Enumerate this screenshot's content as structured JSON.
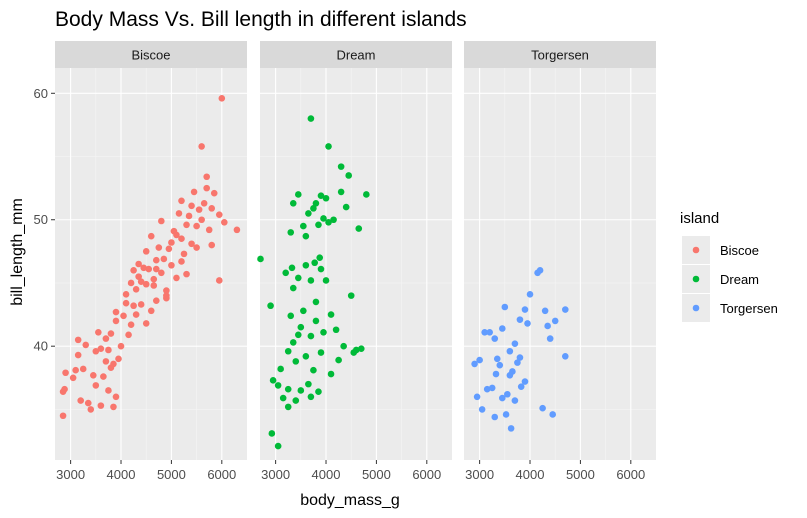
{
  "chart_data": {
    "type": "scatter",
    "title": "Body Mass Vs.  Bill length in different islands",
    "xlabel": "body_mass_g",
    "ylabel": "bill_length_mm",
    "xlim": [
      2690,
      6500
    ],
    "ylim": [
      31,
      62
    ],
    "x_ticks": [
      3000,
      4000,
      5000,
      6000
    ],
    "x_tick_labels": [
      "3000",
      "4000",
      "5000",
      "6000"
    ],
    "y_ticks": [
      40,
      50,
      60
    ],
    "y_tick_labels": [
      "40",
      "50",
      "60"
    ],
    "grid": true,
    "legend": {
      "title": "island",
      "position": "right"
    },
    "facets": [
      {
        "name": "Biscoe",
        "color": "#F8766D",
        "points": [
          [
            2850,
            34.5
          ],
          [
            2850,
            36.4
          ],
          [
            2880,
            36.6
          ],
          [
            2900,
            37.9
          ],
          [
            3050,
            37.5
          ],
          [
            3100,
            38.1
          ],
          [
            3150,
            40.5
          ],
          [
            3150,
            39.3
          ],
          [
            3200,
            35.7
          ],
          [
            3250,
            38.2
          ],
          [
            3300,
            40.1
          ],
          [
            3350,
            35.5
          ],
          [
            3400,
            35.0
          ],
          [
            3450,
            37.7
          ],
          [
            3500,
            36.9
          ],
          [
            3500,
            39.6
          ],
          [
            3550,
            41.1
          ],
          [
            3600,
            35.3
          ],
          [
            3600,
            39.8
          ],
          [
            3650,
            37.6
          ],
          [
            3700,
            38.8
          ],
          [
            3700,
            40.6
          ],
          [
            3750,
            39.7
          ],
          [
            3750,
            36.5
          ],
          [
            3800,
            38.3
          ],
          [
            3800,
            41.0
          ],
          [
            3850,
            38.6
          ],
          [
            3900,
            42.7
          ],
          [
            3900,
            42.0
          ],
          [
            3950,
            39.0
          ],
          [
            4000,
            40.0
          ],
          [
            4050,
            42.4
          ],
          [
            4100,
            44.1
          ],
          [
            4150,
            40.9
          ],
          [
            4200,
            41.7
          ],
          [
            4250,
            43.2
          ],
          [
            4300,
            44.5
          ],
          [
            4300,
            42.5
          ],
          [
            4350,
            45.5
          ],
          [
            4350,
            46.5
          ],
          [
            4400,
            43.3
          ],
          [
            4400,
            45.1
          ],
          [
            4450,
            46.2
          ],
          [
            4500,
            47.5
          ],
          [
            4500,
            44.9
          ],
          [
            4550,
            46.1
          ],
          [
            4600,
            42.8
          ],
          [
            4600,
            48.7
          ],
          [
            4650,
            45.3
          ],
          [
            4700,
            46.8
          ],
          [
            4700,
            43.6
          ],
          [
            4750,
            47.8
          ],
          [
            4800,
            45.8
          ],
          [
            4800,
            49.9
          ],
          [
            4850,
            46.9
          ],
          [
            4900,
            44.4
          ],
          [
            4950,
            47.7
          ],
          [
            5000,
            48.2
          ],
          [
            5000,
            46.4
          ],
          [
            5050,
            49.1
          ],
          [
            5100,
            45.4
          ],
          [
            5150,
            50.5
          ],
          [
            5200,
            48.5
          ],
          [
            5200,
            46.7
          ],
          [
            5250,
            47.3
          ],
          [
            5300,
            49.6
          ],
          [
            5350,
            50.3
          ],
          [
            5400,
            51.1
          ],
          [
            5400,
            48.1
          ],
          [
            5450,
            52.2
          ],
          [
            5500,
            49.5
          ],
          [
            5550,
            50.8
          ],
          [
            5600,
            50.0
          ],
          [
            5600,
            55.8
          ],
          [
            5650,
            51.3
          ],
          [
            5700,
            52.5
          ],
          [
            5750,
            49.2
          ],
          [
            5800,
            48.0
          ],
          [
            5850,
            52.1
          ],
          [
            5950,
            50.4
          ],
          [
            6000,
            59.6
          ],
          [
            6050,
            49.8
          ],
          [
            6300,
            49.2
          ],
          [
            5950,
            45.2
          ],
          [
            5700,
            53.4
          ],
          [
            5500,
            47.8
          ],
          [
            5300,
            45.7
          ],
          [
            5100,
            48.8
          ],
          [
            4900,
            43.8
          ],
          [
            4700,
            46.1
          ],
          [
            3900,
            36.0
          ],
          [
            3850,
            35.2
          ],
          [
            4500,
            41.8
          ],
          [
            4200,
            45.0
          ],
          [
            4900,
            44.0
          ],
          [
            5200,
            51.5
          ],
          [
            5800,
            50.9
          ],
          [
            4650,
            44.8
          ],
          [
            4250,
            46.0
          ],
          [
            4100,
            43.4
          ]
        ]
      },
      {
        "name": "Dream",
        "color": "#00BA38",
        "points": [
          [
            2700,
            46.9
          ],
          [
            2900,
            43.2
          ],
          [
            2925,
            33.1
          ],
          [
            2950,
            37.3
          ],
          [
            3050,
            32.1
          ],
          [
            3050,
            36.9
          ],
          [
            3100,
            38.2
          ],
          [
            3150,
            35.9
          ],
          [
            3200,
            45.8
          ],
          [
            3250,
            39.6
          ],
          [
            3250,
            36.6
          ],
          [
            3300,
            42.4
          ],
          [
            3300,
            49.0
          ],
          [
            3325,
            46.2
          ],
          [
            3350,
            51.3
          ],
          [
            3350,
            40.3
          ],
          [
            3400,
            38.8
          ],
          [
            3400,
            35.7
          ],
          [
            3450,
            45.4
          ],
          [
            3450,
            52.0
          ],
          [
            3500,
            41.5
          ],
          [
            3500,
            36.5
          ],
          [
            3550,
            49.5
          ],
          [
            3550,
            42.8
          ],
          [
            3600,
            39.2
          ],
          [
            3600,
            46.4
          ],
          [
            3650,
            50.5
          ],
          [
            3650,
            37.0
          ],
          [
            3700,
            58.0
          ],
          [
            3700,
            45.2
          ],
          [
            3700,
            40.8
          ],
          [
            3750,
            50.9
          ],
          [
            3750,
            38.1
          ],
          [
            3775,
            46.6
          ],
          [
            3800,
            51.3
          ],
          [
            3800,
            42.0
          ],
          [
            3850,
            49.6
          ],
          [
            3850,
            36.4
          ],
          [
            3875,
            47.0
          ],
          [
            3900,
            51.9
          ],
          [
            3900,
            39.5
          ],
          [
            3950,
            41.1
          ],
          [
            3950,
            50.1
          ],
          [
            4000,
            45.2
          ],
          [
            4000,
            51.7
          ],
          [
            4050,
            55.8
          ],
          [
            4050,
            49.8
          ],
          [
            4100,
            42.5
          ],
          [
            4100,
            37.8
          ],
          [
            4150,
            50.0
          ],
          [
            4200,
            41.3
          ],
          [
            4250,
            38.9
          ],
          [
            4300,
            54.2
          ],
          [
            4300,
            52.2
          ],
          [
            4350,
            40.0
          ],
          [
            4400,
            51.0
          ],
          [
            4450,
            53.5
          ],
          [
            4500,
            44.0
          ],
          [
            4550,
            39.5
          ],
          [
            4600,
            39.7
          ],
          [
            4650,
            49.3
          ],
          [
            4700,
            39.8
          ],
          [
            4800,
            52.0
          ],
          [
            3250,
            35.2
          ],
          [
            3350,
            44.6
          ],
          [
            3600,
            48.7
          ],
          [
            3450,
            40.9
          ],
          [
            3700,
            36.0
          ],
          [
            3900,
            46.1
          ],
          [
            3800,
            43.5
          ]
        ]
      },
      {
        "name": "Torgersen",
        "color": "#619CFF",
        "points": [
          [
            2900,
            38.6
          ],
          [
            2950,
            36.0
          ],
          [
            3000,
            38.9
          ],
          [
            3050,
            35.0
          ],
          [
            3100,
            41.1
          ],
          [
            3150,
            36.6
          ],
          [
            3200,
            41.1
          ],
          [
            3250,
            36.7
          ],
          [
            3300,
            34.4
          ],
          [
            3300,
            40.6
          ],
          [
            3325,
            37.8
          ],
          [
            3350,
            39.0
          ],
          [
            3400,
            38.5
          ],
          [
            3450,
            35.9
          ],
          [
            3450,
            41.4
          ],
          [
            3500,
            43.1
          ],
          [
            3525,
            34.6
          ],
          [
            3550,
            36.2
          ],
          [
            3600,
            37.7
          ],
          [
            3600,
            39.6
          ],
          [
            3625,
            33.5
          ],
          [
            3650,
            38.0
          ],
          [
            3700,
            40.2
          ],
          [
            3700,
            35.7
          ],
          [
            3750,
            38.7
          ],
          [
            3800,
            42.1
          ],
          [
            3800,
            39.1
          ],
          [
            3825,
            36.8
          ],
          [
            3900,
            42.9
          ],
          [
            3900,
            37.2
          ],
          [
            3950,
            41.8
          ],
          [
            4000,
            44.1
          ],
          [
            4150,
            45.8
          ],
          [
            4200,
            46.0
          ],
          [
            4250,
            35.1
          ],
          [
            4300,
            42.8
          ],
          [
            4350,
            41.6
          ],
          [
            4400,
            40.6
          ],
          [
            4450,
            34.6
          ],
          [
            4500,
            42.0
          ],
          [
            4700,
            42.9
          ],
          [
            4700,
            39.2
          ]
        ]
      }
    ]
  }
}
